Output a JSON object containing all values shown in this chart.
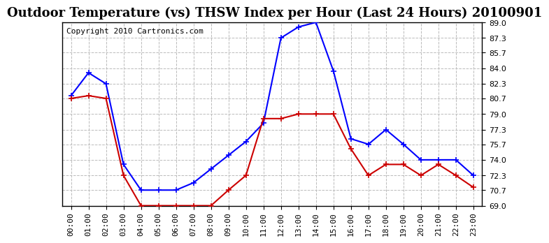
{
  "title": "Outdoor Temperature (vs) THSW Index per Hour (Last 24 Hours) 20100901",
  "copyright": "Copyright 2010 Cartronics.com",
  "hours": [
    "00:00",
    "01:00",
    "02:00",
    "03:00",
    "04:00",
    "05:00",
    "06:00",
    "07:00",
    "08:00",
    "09:00",
    "10:00",
    "11:00",
    "12:00",
    "13:00",
    "14:00",
    "15:00",
    "16:00",
    "17:00",
    "18:00",
    "19:00",
    "20:00",
    "21:00",
    "22:00",
    "23:00"
  ],
  "blue_data": [
    81.0,
    83.5,
    82.3,
    73.5,
    70.7,
    70.7,
    70.7,
    71.5,
    73.0,
    74.5,
    76.0,
    78.0,
    87.3,
    88.5,
    89.0,
    83.7,
    76.3,
    75.7,
    77.3,
    75.7,
    74.0,
    74.0,
    74.0,
    72.3
  ],
  "red_data": [
    80.7,
    81.0,
    80.7,
    72.3,
    69.0,
    69.0,
    69.0,
    69.0,
    69.0,
    70.7,
    72.3,
    78.5,
    78.5,
    79.0,
    79.0,
    79.0,
    75.2,
    72.3,
    73.5,
    73.5,
    72.3,
    73.5,
    72.3,
    71.0
  ],
  "blue_color": "#0000ff",
  "red_color": "#cc0000",
  "bg_color": "#ffffff",
  "plot_bg_color": "#ffffff",
  "grid_color": "#bbbbbb",
  "ylim_min": 69.0,
  "ylim_max": 89.0,
  "yticks": [
    69.0,
    70.7,
    72.3,
    74.0,
    75.7,
    77.3,
    79.0,
    80.7,
    82.3,
    84.0,
    85.7,
    87.3,
    89.0
  ],
  "title_fontsize": 13,
  "copyright_fontsize": 8,
  "tick_fontsize": 8,
  "marker": "+",
  "marker_size": 6,
  "line_width": 1.5
}
